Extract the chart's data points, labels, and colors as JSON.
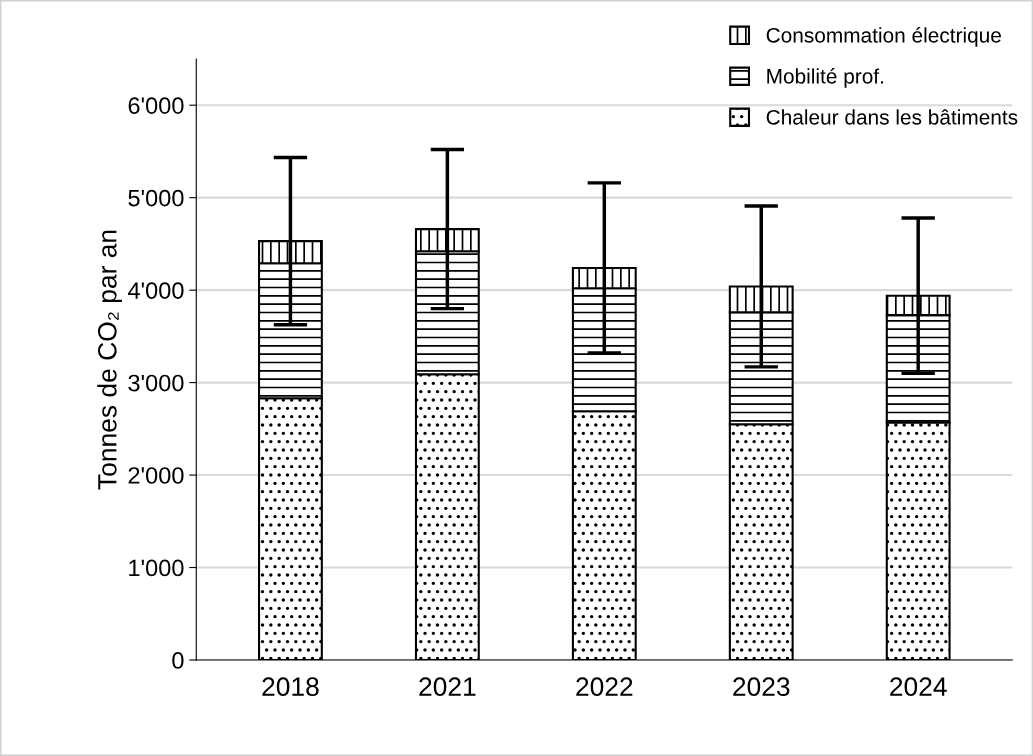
{
  "chart_data": {
    "type": "bar",
    "stacked": true,
    "ylabel": "Tonnes de CO₂ par an",
    "categories": [
      "2018",
      "2021",
      "2022",
      "2023",
      "2024"
    ],
    "series": [
      {
        "name": "Chaleur dans les bâtiments",
        "color": "#000000",
        "values": [
          2830,
          3090,
          2690,
          2550,
          2570
        ]
      },
      {
        "name": "Mobilité prof.",
        "color": "#000000",
        "values": [
          1460,
          1330,
          1330,
          1210,
          1160
        ]
      },
      {
        "name": "Consommation électrique",
        "color": "#000000",
        "values": [
          240,
          240,
          220,
          280,
          210
        ],
        "errors": [
          905,
          860,
          920,
          870,
          840
        ]
      }
    ],
    "ylim": [
      0,
      6500
    ],
    "yticks": [
      {
        "value": 0,
        "label": "0"
      },
      {
        "value": 1000,
        "label": "1'000"
      },
      {
        "value": 2000,
        "label": "2'000"
      },
      {
        "value": 3000,
        "label": "3'000"
      },
      {
        "value": 4000,
        "label": "4'000"
      },
      {
        "value": 5000,
        "label": "5'000"
      },
      {
        "value": 6000,
        "label": "6'000"
      }
    ],
    "grid": "y",
    "legend": "top right"
  }
}
